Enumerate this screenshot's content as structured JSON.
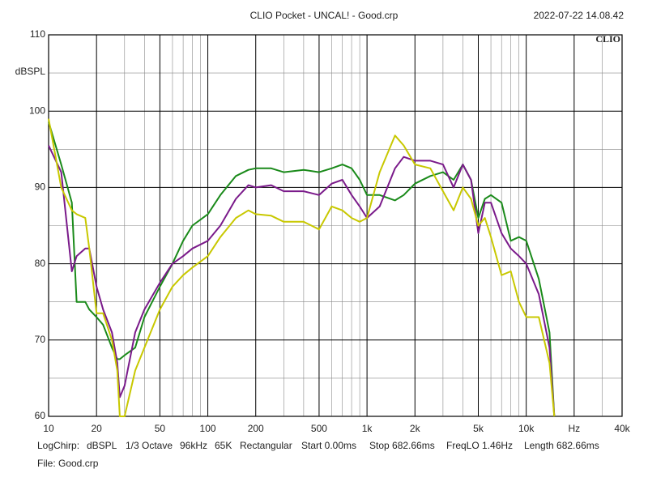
{
  "chart_data": {
    "type": "line",
    "title": "CLIO Pocket - UNCAL! - Good.crp",
    "timestamp": "2022-07-22 14.08.42",
    "watermark": "CLIO",
    "ylabel": "dBSPL",
    "info": [
      "LogChirp:",
      "dBSPL",
      "1/3 Octave",
      "96kHz",
      "65K",
      "Rectangular",
      "Start 0.00ms",
      "Stop 682.66ms",
      "FreqLO 1.46Hz",
      "Length 682.66ms"
    ],
    "file": "File: Good.crp",
    "xscale": "log",
    "xlim": [
      10,
      40000
    ],
    "ylim": [
      60,
      110
    ],
    "xticks": [
      10,
      20,
      50,
      100,
      200,
      500,
      {
        "value": 1000,
        "label": "1k"
      },
      {
        "value": 2000,
        "label": "2k"
      },
      {
        "value": 5000,
        "label": "5k"
      },
      {
        "value": 10000,
        "label": "10k"
      },
      {
        "value": 20000,
        "label": "Hz"
      },
      {
        "value": 40000,
        "label": "40k"
      }
    ],
    "xgrid_minor": [
      30,
      40,
      60,
      70,
      80,
      90,
      300,
      400,
      600,
      700,
      800,
      900,
      3000,
      4000,
      6000,
      7000,
      8000,
      9000,
      30000
    ],
    "yticks": [
      60,
      70,
      80,
      90,
      100,
      110
    ],
    "ygrid_minor": [
      65,
      75,
      85,
      95,
      105
    ],
    "grid": true,
    "x": [
      10,
      12,
      14,
      15,
      17,
      18,
      20,
      22,
      25,
      27,
      28,
      30,
      35,
      40,
      50,
      60,
      70,
      80,
      100,
      120,
      150,
      180,
      200,
      250,
      300,
      400,
      500,
      600,
      700,
      800,
      900,
      1000,
      1200,
      1500,
      1700,
      2000,
      2500,
      3000,
      3500,
      4000,
      4500,
      5000,
      5500,
      6000,
      7000,
      8000,
      9000,
      10000,
      12000,
      14000,
      15000
    ],
    "series": [
      {
        "color": "#1a8a1a",
        "values": [
          98.6,
          93,
          88,
          75,
          75,
          74,
          73,
          72,
          69,
          67.5,
          67.5,
          68,
          69,
          73,
          77,
          80,
          83,
          85,
          86.5,
          89,
          91.5,
          92.3,
          92.5,
          92.5,
          92,
          92.3,
          92,
          92.5,
          93,
          92.5,
          91,
          89,
          89,
          88.3,
          89,
          90.5,
          91.5,
          92,
          91,
          93,
          91,
          86,
          88.5,
          89,
          88,
          83,
          83.5,
          83,
          78,
          71,
          60
        ]
      },
      {
        "color": "#7a1a8a",
        "values": [
          95.5,
          92,
          79,
          81,
          82,
          82,
          77,
          74,
          71,
          67,
          62.5,
          64,
          71,
          74,
          77.5,
          80,
          81,
          82,
          83,
          85,
          88.5,
          90.3,
          90,
          90.3,
          89.5,
          89.5,
          89,
          90.5,
          91,
          89,
          87.5,
          86,
          87.5,
          92.5,
          94,
          93.5,
          93.5,
          93,
          90,
          93,
          91,
          84,
          88,
          88,
          84,
          82,
          81,
          80,
          76,
          69,
          60
        ]
      },
      {
        "color": "#c8c800",
        "values": [
          99,
          90,
          87,
          86.5,
          86,
          82,
          73.5,
          73.5,
          70,
          66,
          60,
          60,
          66,
          69,
          74,
          77,
          78.5,
          79.5,
          81,
          83.5,
          86,
          87,
          86.5,
          86.3,
          85.5,
          85.5,
          84.5,
          87.5,
          87,
          86,
          85.5,
          86,
          92,
          96.8,
          95.5,
          93,
          92.5,
          89.5,
          87,
          90,
          88.5,
          85,
          86,
          83.5,
          78.5,
          79,
          75,
          73,
          73,
          67,
          60
        ]
      }
    ]
  }
}
